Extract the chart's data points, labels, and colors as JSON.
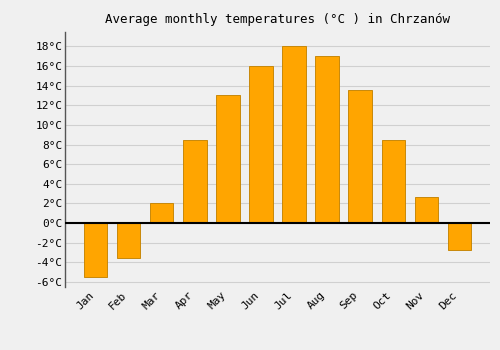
{
  "months": [
    "Jan",
    "Feb",
    "Mar",
    "Apr",
    "May",
    "Jun",
    "Jul",
    "Aug",
    "Sep",
    "Oct",
    "Nov",
    "Dec"
  ],
  "temperatures": [
    -5.5,
    -3.5,
    2.0,
    8.5,
    13.0,
    16.0,
    18.0,
    17.0,
    13.5,
    8.5,
    2.7,
    -2.7
  ],
  "bar_color_face": "#FFA500",
  "bar_color_edge": "#C8880A",
  "title": "Average monthly temperatures (°C ) in Chrzanów",
  "ylim": [
    -6.5,
    19.5
  ],
  "yticks": [
    -6,
    -4,
    -2,
    0,
    2,
    4,
    6,
    8,
    10,
    12,
    14,
    16,
    18
  ],
  "ytick_labels": [
    "-6°C",
    "-4°C",
    "-2°C",
    "0°C",
    "2°C",
    "4°C",
    "6°C",
    "8°C",
    "10°C",
    "12°C",
    "14°C",
    "16°C",
    "18°C"
  ],
  "background_color": "#f0f0f0",
  "grid_color": "#d0d0d0",
  "zero_line_color": "#000000",
  "title_fontsize": 9,
  "tick_fontsize": 8,
  "bar_width": 0.7,
  "spine_color": "#555555"
}
